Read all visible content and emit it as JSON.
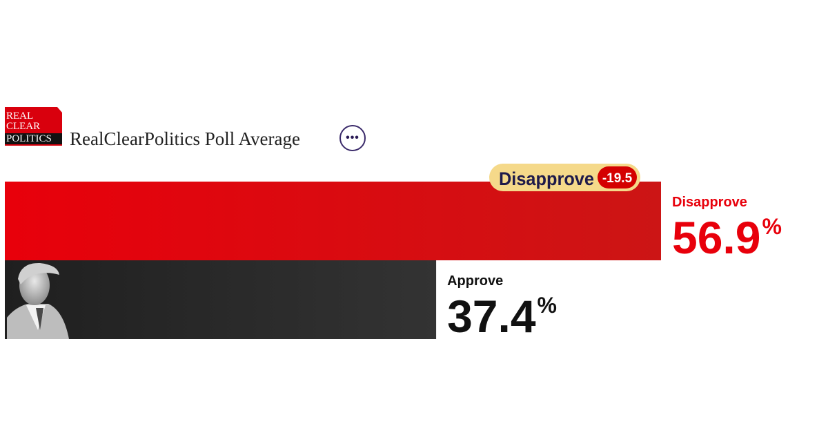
{
  "logo": {
    "line1": "REAL",
    "line2": "CLEAR",
    "line3": "POLITICS"
  },
  "header": {
    "title": "RealClearPolitics Poll Average",
    "more_icon": "ellipsis-icon"
  },
  "colors": {
    "disapprove": "#e8000b",
    "disapprove_dark": "#cc1515",
    "approve": "#2a2a2a",
    "badge_bg": "#f5d98a",
    "badge_text": "#1e1a4a",
    "spread_bg": "#d40000"
  },
  "chart_data": {
    "type": "bar",
    "orientation": "horizontal",
    "unit": "%",
    "xlim": [
      0,
      60
    ],
    "series": [
      {
        "name": "Disapprove",
        "value": 56.9,
        "color": "#e8000b"
      },
      {
        "name": "Approve",
        "value": 37.4,
        "color": "#2a2a2a"
      }
    ],
    "leader_badge": {
      "label": "Disapprove",
      "spread": "-19.5"
    }
  }
}
